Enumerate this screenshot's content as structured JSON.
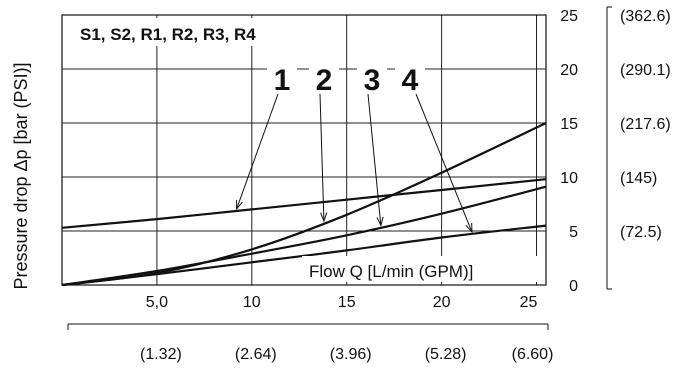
{
  "chart_data": {
    "type": "line",
    "header": "S1, S2,  R1, R2, R3, R4",
    "ylabel": "Pressure drop Δp [bar (PSI)]",
    "xlabel": "Flow Q [L/min (GPM)]",
    "xlim": [
      0,
      25.5
    ],
    "ylim": [
      0,
      25
    ],
    "x_ticks": [
      {
        "value": 5,
        "label": "5,0"
      },
      {
        "value": 10,
        "label": "10"
      },
      {
        "value": 15,
        "label": "15"
      },
      {
        "value": 20,
        "label": "20"
      },
      {
        "value": 25,
        "label": "25"
      }
    ],
    "x_ticks_secondary": [
      {
        "value": 5,
        "label": "(1.32)"
      },
      {
        "value": 10,
        "label": "(2.64)"
      },
      {
        "value": 15,
        "label": "(3.96)"
      },
      {
        "value": 20,
        "label": "(5.28)"
      },
      {
        "value": 25,
        "label": "(6.60)"
      }
    ],
    "y_ticks": [
      {
        "value": 0,
        "label": "0"
      },
      {
        "value": 5,
        "label": "5"
      },
      {
        "value": 10,
        "label": "10"
      },
      {
        "value": 15,
        "label": "15"
      },
      {
        "value": 20,
        "label": "20"
      },
      {
        "value": 25,
        "label": "25"
      }
    ],
    "y_ticks_secondary": [
      {
        "value": 5,
        "label": "(72.5)"
      },
      {
        "value": 10,
        "label": "(145)"
      },
      {
        "value": 15,
        "label": "(217.6)"
      },
      {
        "value": 20,
        "label": "(290.1)"
      },
      {
        "value": 25,
        "label": "(362.6)"
      }
    ],
    "series": [
      {
        "name": "1",
        "x": [
          0,
          5,
          10,
          15,
          20,
          25.5
        ],
        "y": [
          5.3,
          6.1,
          7.0,
          7.9,
          8.8,
          9.8
        ]
      },
      {
        "name": "2",
        "x": [
          0,
          5,
          10,
          15,
          20,
          25.5
        ],
        "y": [
          0,
          1.1,
          3.3,
          6.5,
          10.4,
          15.0
        ]
      },
      {
        "name": "3",
        "x": [
          0,
          5,
          10,
          15,
          20,
          25.5
        ],
        "y": [
          0,
          1.3,
          2.9,
          4.6,
          6.6,
          9.1
        ]
      },
      {
        "name": "4",
        "x": [
          0,
          5,
          10,
          15,
          20,
          25.5
        ],
        "y": [
          0,
          1.0,
          2.1,
          3.2,
          4.4,
          5.5
        ]
      }
    ]
  }
}
